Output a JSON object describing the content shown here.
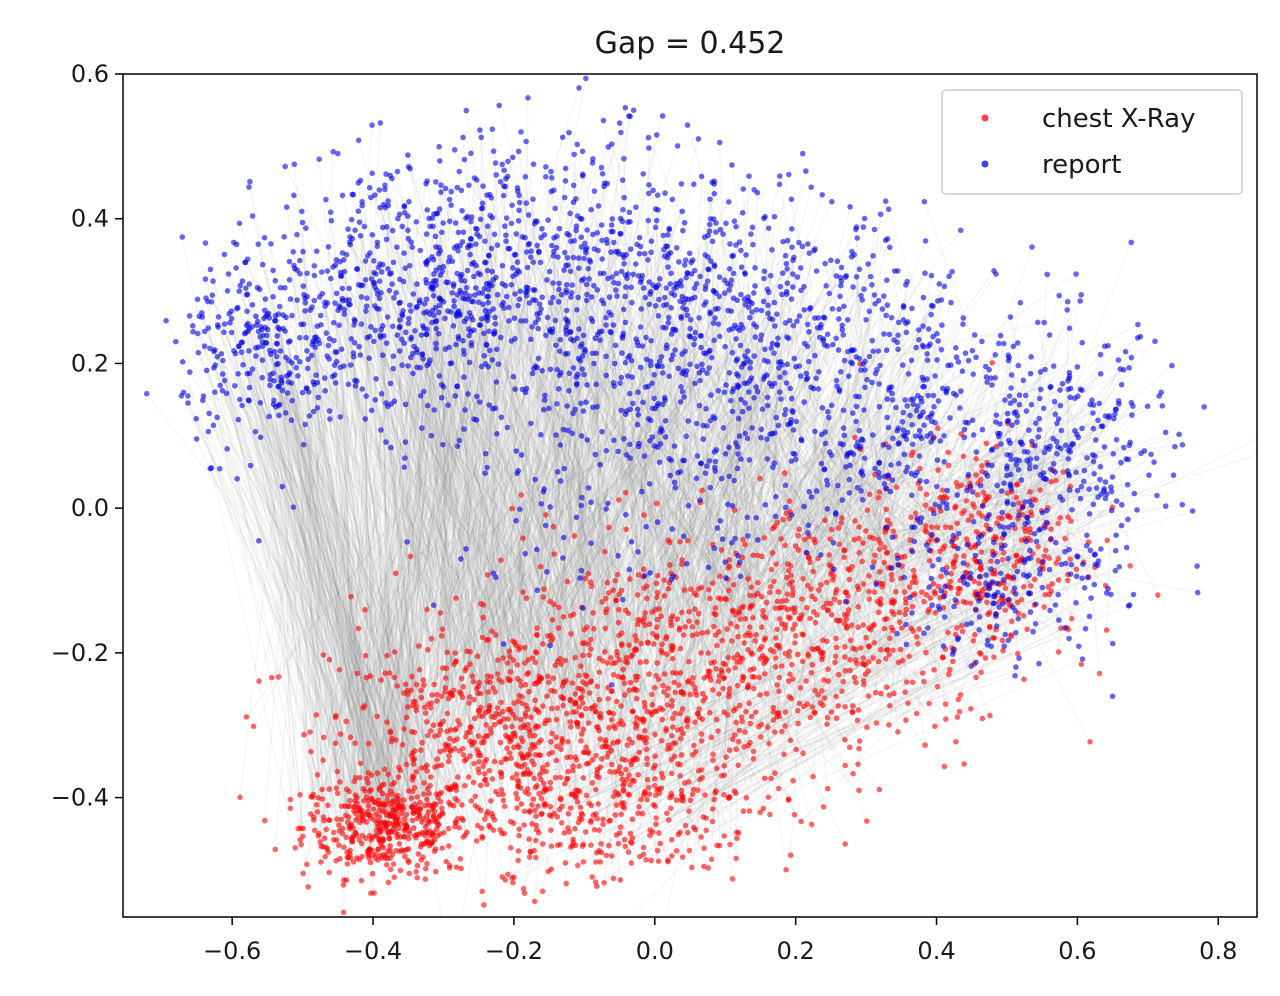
{
  "chart_data": {
    "type": "scatter",
    "title": "Gap = 0.452",
    "xlabel": "",
    "ylabel": "",
    "xlim": [
      -0.755,
      0.855
    ],
    "ylim": [
      -0.565,
      0.6
    ],
    "x_ticks": [
      -0.6,
      -0.4,
      -0.2,
      0.0,
      0.2,
      0.4,
      0.6,
      0.8
    ],
    "x_tick_labels": [
      "−0.6",
      "−0.4",
      "−0.2",
      "0.0",
      "0.2",
      "0.4",
      "0.6",
      "0.8"
    ],
    "y_ticks": [
      -0.4,
      -0.2,
      0.0,
      0.2,
      0.4,
      0.6
    ],
    "y_tick_labels": [
      "−0.4",
      "−0.2",
      "0.0",
      "0.2",
      "0.4",
      "0.6"
    ],
    "grid": false,
    "legend_position": "top-right",
    "connector_lines": true,
    "connector_color": "#808080",
    "series": [
      {
        "name": "chest X-Ray",
        "color": "#ff0000",
        "clusters": [
          {
            "cx": -0.38,
            "cy": -0.44,
            "sx": 0.06,
            "sy": 0.035,
            "n": 420
          },
          {
            "cx": -0.22,
            "cy": -0.32,
            "sx": 0.12,
            "sy": 0.08,
            "n": 600
          },
          {
            "cx": 0.02,
            "cy": -0.25,
            "sx": 0.15,
            "sy": 0.1,
            "n": 650
          },
          {
            "cx": 0.25,
            "cy": -0.15,
            "sx": 0.13,
            "sy": 0.08,
            "n": 420
          },
          {
            "cx": 0.45,
            "cy": -0.05,
            "sx": 0.08,
            "sy": 0.07,
            "n": 320
          },
          {
            "cx": -0.05,
            "cy": -0.42,
            "sx": 0.1,
            "sy": 0.05,
            "n": 200
          }
        ],
        "sample_points": [
          [
            -0.48,
            -0.41
          ],
          [
            -0.37,
            -0.51
          ],
          [
            -0.2,
            -0.51
          ],
          [
            0.07,
            -0.47
          ],
          [
            0.29,
            -0.39
          ],
          [
            0.55,
            -0.08
          ],
          [
            0.58,
            0.05
          ]
        ]
      },
      {
        "name": "report",
        "color": "#0000e6",
        "clusters": [
          {
            "cx": -0.55,
            "cy": 0.22,
            "sx": 0.06,
            "sy": 0.07,
            "n": 260
          },
          {
            "cx": -0.35,
            "cy": 0.3,
            "sx": 0.1,
            "sy": 0.09,
            "n": 480
          },
          {
            "cx": -0.12,
            "cy": 0.32,
            "sx": 0.12,
            "sy": 0.1,
            "n": 520
          },
          {
            "cx": 0.12,
            "cy": 0.25,
            "sx": 0.13,
            "sy": 0.1,
            "n": 480
          },
          {
            "cx": 0.35,
            "cy": 0.15,
            "sx": 0.1,
            "sy": 0.1,
            "n": 320
          },
          {
            "cx": 0.58,
            "cy": 0.07,
            "sx": 0.08,
            "sy": 0.09,
            "n": 300
          },
          {
            "cx": 0.5,
            "cy": -0.1,
            "sx": 0.08,
            "sy": 0.06,
            "n": 160
          },
          {
            "cx": 0.0,
            "cy": 0.05,
            "sx": 0.18,
            "sy": 0.1,
            "n": 200
          }
        ],
        "sample_points": [
          [
            -0.68,
            0.23
          ],
          [
            -0.45,
            0.49
          ],
          [
            -0.19,
            0.52
          ],
          [
            -0.03,
            0.55
          ],
          [
            0.21,
            0.49
          ],
          [
            0.78,
            0.14
          ],
          [
            0.77,
            -0.08
          ],
          [
            0.65,
            -0.26
          ]
        ]
      }
    ]
  }
}
